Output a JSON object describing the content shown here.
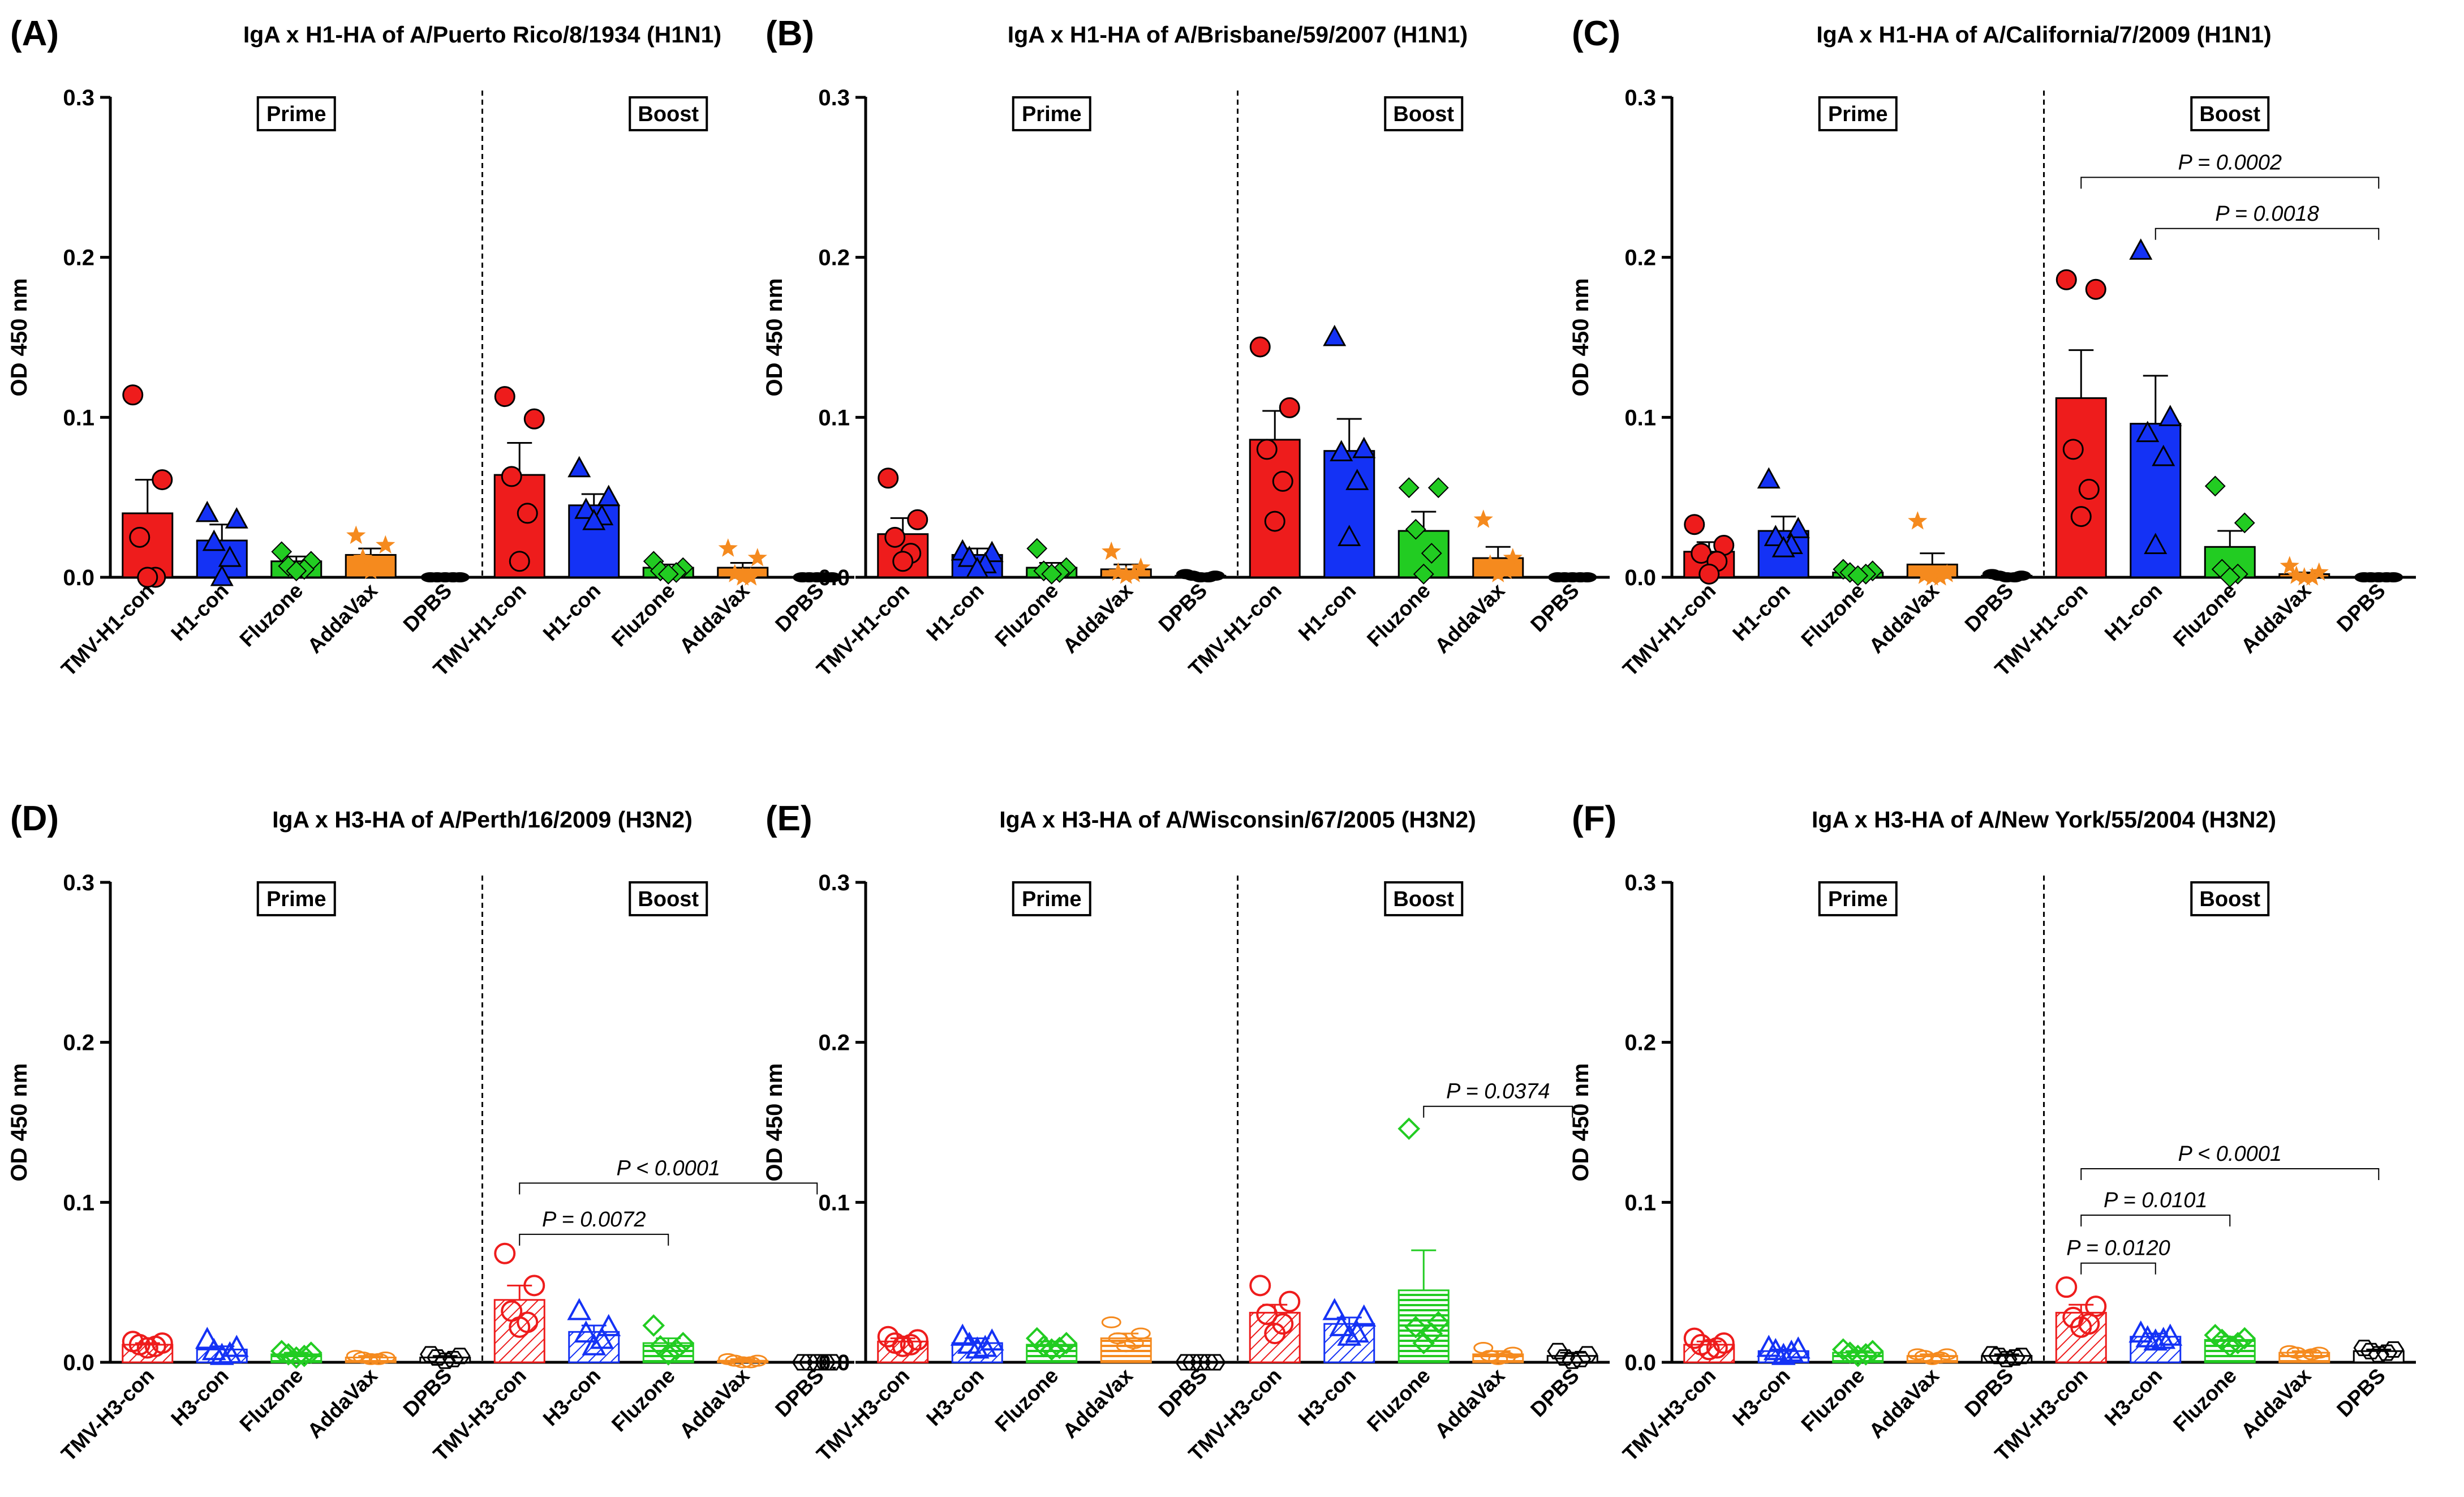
{
  "figure": {
    "ylabel": "OD 450 nm",
    "yticks": [
      "0.0",
      "0.1",
      "0.2",
      "0.3"
    ],
    "group_labels": [
      "Prime",
      "Boost"
    ]
  },
  "colors": {
    "TMV": "#ee1c1c",
    "con": "#1432f5",
    "Fluzone": "#22cc22",
    "AddaVax": "#f58a1e",
    "DPBS": "#000000"
  },
  "chart_data": [
    {
      "type": "bar",
      "panel": "(A)",
      "filled": true,
      "title": "IgA x H1-HA of A/Puerto Rico/8/1934 (H1N1)",
      "ylabel": "OD 450 nm",
      "ylim": [
        0,
        0.3
      ],
      "categories": [
        "TMV-H1-con",
        "H1-con",
        "Fluzone",
        "AddaVax",
        "DPBS",
        "TMV-H1-con",
        "H1-con",
        "Fluzone",
        "AddaVax",
        "DPBS"
      ],
      "values": [
        0.04,
        0.023,
        0.01,
        0.014,
        0.0,
        0.064,
        0.045,
        0.006,
        0.006,
        0.0
      ],
      "sem": [
        0.021,
        0.01,
        0.003,
        0.004,
        0.0,
        0.02,
        0.007,
        0.002,
        0.003,
        0.0
      ],
      "points": [
        [
          0.114,
          0.061,
          0.025,
          0.0,
          0.0
        ],
        [
          0.04,
          0.036,
          0.022,
          0.012,
          0.0
        ],
        [
          0.016,
          0.01,
          0.007,
          0.005,
          0.004
        ],
        [
          0.026,
          0.02,
          0.012,
          0.006,
          0.004
        ],
        [
          0,
          0,
          0,
          0,
          0
        ],
        [
          0.113,
          0.099,
          0.063,
          0.04,
          0.01
        ],
        [
          0.068,
          0.05,
          0.042,
          0.038,
          0.035
        ],
        [
          0.01,
          0.006,
          0.004,
          0.003,
          0.002
        ],
        [
          0.018,
          0.012,
          0.002,
          0.0,
          0.0
        ],
        [
          0,
          0,
          0,
          0,
          0
        ]
      ],
      "annotations": []
    },
    {
      "type": "bar",
      "panel": "(B)",
      "filled": true,
      "title": "IgA x H1-HA of A/Brisbane/59/2007 (H1N1)",
      "ylabel": "OD 450 nm",
      "ylim": [
        0,
        0.3
      ],
      "categories": [
        "TMV-H1-con",
        "H1-con",
        "Fluzone",
        "AddaVax",
        "DPBS",
        "TMV-H1-con",
        "H1-con",
        "Fluzone",
        "AddaVax",
        "DPBS"
      ],
      "values": [
        0.027,
        0.014,
        0.006,
        0.005,
        0.001,
        0.086,
        0.079,
        0.029,
        0.012,
        0.0
      ],
      "sem": [
        0.01,
        0.004,
        0.003,
        0.003,
        0.001,
        0.018,
        0.02,
        0.012,
        0.007,
        0.0
      ],
      "points": [
        [
          0.062,
          0.036,
          0.025,
          0.015,
          0.01
        ],
        [
          0.016,
          0.015,
          0.012,
          0.008,
          0.005
        ],
        [
          0.018,
          0.006,
          0.004,
          0.003,
          0.002
        ],
        [
          0.016,
          0.006,
          0.003,
          0.002,
          0.001
        ],
        [
          0.002,
          0.001,
          0.001,
          0.0,
          0.0
        ],
        [
          0.144,
          0.106,
          0.08,
          0.06,
          0.035
        ],
        [
          0.15,
          0.08,
          0.078,
          0.06,
          0.025
        ],
        [
          0.056,
          0.056,
          0.03,
          0.015,
          0.002
        ],
        [
          0.036,
          0.012,
          0.008,
          0.004,
          0.002
        ],
        [
          0,
          0,
          0,
          0,
          0
        ]
      ],
      "annotations": []
    },
    {
      "type": "bar",
      "panel": "(C)",
      "filled": true,
      "title": "IgA x H1-HA of A/California/7/2009 (H1N1)",
      "ylabel": "OD 450 nm",
      "ylim": [
        0,
        0.3
      ],
      "categories": [
        "TMV-H1-con",
        "H1-con",
        "Fluzone",
        "AddaVax",
        "DPBS",
        "TMV-H1-con",
        "H1-con",
        "Fluzone",
        "AddaVax",
        "DPBS"
      ],
      "values": [
        0.016,
        0.029,
        0.003,
        0.008,
        0.001,
        0.112,
        0.096,
        0.019,
        0.002,
        0.0
      ],
      "sem": [
        0.006,
        0.009,
        0.001,
        0.007,
        0.001,
        0.03,
        0.03,
        0.01,
        0.001,
        0.0
      ],
      "points": [
        [
          0.033,
          0.02,
          0.015,
          0.01,
          0.002
        ],
        [
          0.061,
          0.03,
          0.025,
          0.02,
          0.018
        ],
        [
          0.005,
          0.004,
          0.003,
          0.002,
          0.001
        ],
        [
          0.035,
          0.002,
          0.001,
          0.0,
          0.0
        ],
        [
          0.002,
          0.001,
          0.001,
          0.0,
          0.0
        ],
        [
          0.186,
          0.18,
          0.08,
          0.055,
          0.038
        ],
        [
          0.204,
          0.1,
          0.09,
          0.075,
          0.02
        ],
        [
          0.057,
          0.034,
          0.005,
          0.002,
          0.0
        ],
        [
          0.007,
          0.003,
          0.001,
          0.0,
          0.0
        ],
        [
          0,
          0,
          0,
          0,
          0
        ]
      ],
      "annotations": [
        {
          "from": 5,
          "to": 9,
          "y": 0.25,
          "text": "P = 0.0002"
        },
        {
          "from": 6,
          "to": 9,
          "y": 0.218,
          "text": "P = 0.0018"
        }
      ]
    },
    {
      "type": "bar",
      "panel": "(D)",
      "filled": false,
      "title": "IgA x H3-HA of A/Perth/16/2009 (H3N2)",
      "ylabel": "OD 450 nm",
      "ylim": [
        0,
        0.3
      ],
      "categories": [
        "TMV-H3-con",
        "H3-con",
        "Fluzone",
        "AddaVax",
        "DPBS",
        "TMV-H3-con",
        "H3-con",
        "Fluzone",
        "AddaVax",
        "DPBS"
      ],
      "values": [
        0.011,
        0.008,
        0.005,
        0.003,
        0.003,
        0.039,
        0.019,
        0.012,
        0.001,
        0.0
      ],
      "sem": [
        0.001,
        0.002,
        0.001,
        0.001,
        0.001,
        0.009,
        0.004,
        0.003,
        0.001,
        0.0
      ],
      "points": [
        [
          0.013,
          0.012,
          0.011,
          0.01,
          0.009
        ],
        [
          0.014,
          0.009,
          0.007,
          0.005,
          0.004
        ],
        [
          0.007,
          0.006,
          0.005,
          0.004,
          0.003
        ],
        [
          0.004,
          0.003,
          0.003,
          0.002,
          0.002
        ],
        [
          0.005,
          0.004,
          0.003,
          0.002,
          0.001
        ],
        [
          0.068,
          0.048,
          0.032,
          0.025,
          0.022
        ],
        [
          0.032,
          0.022,
          0.018,
          0.014,
          0.01
        ],
        [
          0.023,
          0.012,
          0.01,
          0.008,
          0.005
        ],
        [
          0.002,
          0.001,
          0.001,
          0.0,
          0.0
        ],
        [
          0,
          0,
          0,
          0,
          0
        ]
      ],
      "annotations": [
        {
          "from": 5,
          "to": 9,
          "y": 0.112,
          "text": "P < 0.0001"
        },
        {
          "from": 5,
          "to": 7,
          "y": 0.08,
          "text": "P = 0.0072"
        }
      ]
    },
    {
      "type": "bar",
      "panel": "(E)",
      "filled": false,
      "title": "IgA x H3-HA of A/Wisconsin/67/2005 (H3N2)",
      "ylabel": "OD 450 nm",
      "ylim": [
        0,
        0.3
      ],
      "categories": [
        "TMV-H3-con",
        "H3-con",
        "Fluzone",
        "AddaVax",
        "DPBS",
        "TMV-H3-con",
        "H3-con",
        "Fluzone",
        "AddaVax",
        "DPBS"
      ],
      "values": [
        0.013,
        0.012,
        0.011,
        0.015,
        0.0,
        0.031,
        0.024,
        0.045,
        0.005,
        0.004
      ],
      "sem": [
        0.002,
        0.003,
        0.002,
        0.003,
        0.0,
        0.005,
        0.004,
        0.025,
        0.002,
        0.002
      ],
      "points": [
        [
          0.016,
          0.014,
          0.012,
          0.011,
          0.01
        ],
        [
          0.016,
          0.013,
          0.011,
          0.009,
          0.008
        ],
        [
          0.015,
          0.012,
          0.01,
          0.009,
          0.008
        ],
        [
          0.025,
          0.018,
          0.015,
          0.012,
          0.01
        ],
        [
          0,
          0,
          0,
          0,
          0
        ],
        [
          0.048,
          0.038,
          0.03,
          0.024,
          0.018
        ],
        [
          0.032,
          0.028,
          0.022,
          0.018,
          0.016
        ],
        [
          0.146,
          0.025,
          0.022,
          0.018,
          0.012
        ],
        [
          0.009,
          0.006,
          0.004,
          0.003,
          0.002
        ],
        [
          0.007,
          0.005,
          0.003,
          0.002,
          0.001
        ]
      ],
      "annotations": [
        {
          "from": 7,
          "to": 9,
          "y": 0.16,
          "text": "P = 0.0374"
        }
      ]
    },
    {
      "type": "bar",
      "panel": "(F)",
      "filled": false,
      "title": "IgA x H3-HA of A/New York/55/2004 (H3N2)",
      "ylabel": "OD 450 nm",
      "ylim": [
        0,
        0.3
      ],
      "categories": [
        "TMV-H3-con",
        "H3-con",
        "Fluzone",
        "AddaVax",
        "DPBS",
        "TMV-H3-con",
        "H3-con",
        "Fluzone",
        "AddaVax",
        "DPBS"
      ],
      "values": [
        0.011,
        0.007,
        0.006,
        0.004,
        0.004,
        0.031,
        0.016,
        0.014,
        0.006,
        0.007
      ],
      "sem": [
        0.002,
        0.001,
        0.001,
        0.001,
        0.001,
        0.005,
        0.002,
        0.002,
        0.001,
        0.001
      ],
      "points": [
        [
          0.015,
          0.012,
          0.011,
          0.009,
          0.008
        ],
        [
          0.009,
          0.008,
          0.007,
          0.006,
          0.004
        ],
        [
          0.008,
          0.007,
          0.006,
          0.005,
          0.004
        ],
        [
          0.005,
          0.005,
          0.004,
          0.003,
          0.002
        ],
        [
          0.005,
          0.004,
          0.004,
          0.003,
          0.002
        ],
        [
          0.047,
          0.035,
          0.028,
          0.024,
          0.022
        ],
        [
          0.018,
          0.016,
          0.015,
          0.014,
          0.013
        ],
        [
          0.017,
          0.015,
          0.014,
          0.012,
          0.01
        ],
        [
          0.007,
          0.006,
          0.006,
          0.005,
          0.004
        ],
        [
          0.009,
          0.008,
          0.007,
          0.006,
          0.005
        ]
      ],
      "annotations": [
        {
          "from": 5,
          "to": 9,
          "y": 0.121,
          "text": "P < 0.0001"
        },
        {
          "from": 5,
          "to": 7,
          "y": 0.092,
          "text": "P = 0.0101"
        },
        {
          "from": 5,
          "to": 6,
          "y": 0.062,
          "text": "P = 0.0120"
        }
      ]
    }
  ]
}
